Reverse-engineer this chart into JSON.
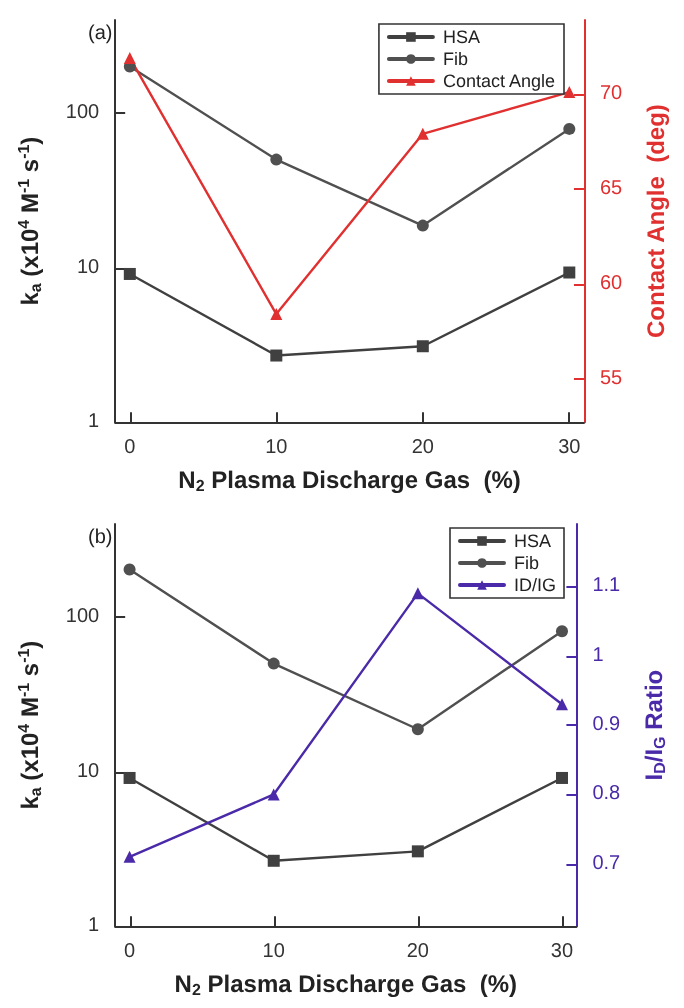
{
  "chart_data": [
    {
      "type": "line",
      "xlabel": "N$_{2}$ Plasma Discharge Gas  (%)",
      "ylabel": "k$_{a}$ (x10$^{4}$ M$^{-1}$ s$^{-1}$)",
      "y2label": "Contact Angle  (deg)",
      "annotations": [
        "(a)"
      ],
      "log": "y",
      "grid": false,
      "legend": "top right",
      "x": [
        0,
        10,
        20,
        30
      ],
      "xlim": [
        -1,
        31
      ],
      "xticks": [
        0,
        10,
        20,
        30
      ],
      "ylim": [
        1,
        400
      ],
      "yticks": [
        1,
        10,
        100
      ],
      "y2lim": [
        52.7,
        73.9
      ],
      "y2ticks": [
        55,
        60,
        65,
        70
      ],
      "series": [
        {
          "name": "HSA",
          "color": "#404040",
          "marker": "square",
          "values": [
            9.1,
            2.7,
            3.1,
            9.3
          ]
        },
        {
          "name": "Fib",
          "color": "#505050",
          "marker": "circle",
          "values": [
            200,
            50,
            18.7,
            79
          ]
        },
        {
          "name": "Contact Angle",
          "color": "#e03030",
          "marker": "triangle",
          "axis": "y2",
          "values": [
            71.9,
            58.4,
            67.9,
            70.1
          ]
        }
      ]
    },
    {
      "type": "line",
      "xlabel": "N$_{2}$ Plasma Discharge Gas  (%)",
      "ylabel": "k$_{a}$ (x10$^{4}$ M$^{-1}$ s$^{-1}$)",
      "y2label": "I$_{D}$/I$_{G}$ Ratio",
      "annotations": [
        "(b)"
      ],
      "log": "y",
      "grid": false,
      "legend": "top right",
      "x": [
        0,
        10,
        20,
        30
      ],
      "xlim": [
        -1,
        31
      ],
      "xticks": [
        0,
        10,
        20,
        30
      ],
      "ylim": [
        1,
        400
      ],
      "yticks": [
        1,
        10,
        100
      ],
      "y2lim": [
        0.61,
        1.19
      ],
      "y2ticks": [
        0.7,
        0.8,
        0.9,
        1.0,
        1.1
      ],
      "series": [
        {
          "name": "HSA",
          "color": "#404040",
          "marker": "square",
          "values": [
            9.1,
            2.65,
            3.05,
            9.1
          ]
        },
        {
          "name": "Fib",
          "color": "#505050",
          "marker": "circle",
          "values": [
            203,
            50,
            18.8,
            81
          ]
        },
        {
          "name": "ID/IG",
          "color": "#4a2aa8",
          "marker": "triangle",
          "axis": "y2",
          "values": [
            0.71,
            0.8,
            1.09,
            0.93
          ]
        }
      ]
    }
  ]
}
